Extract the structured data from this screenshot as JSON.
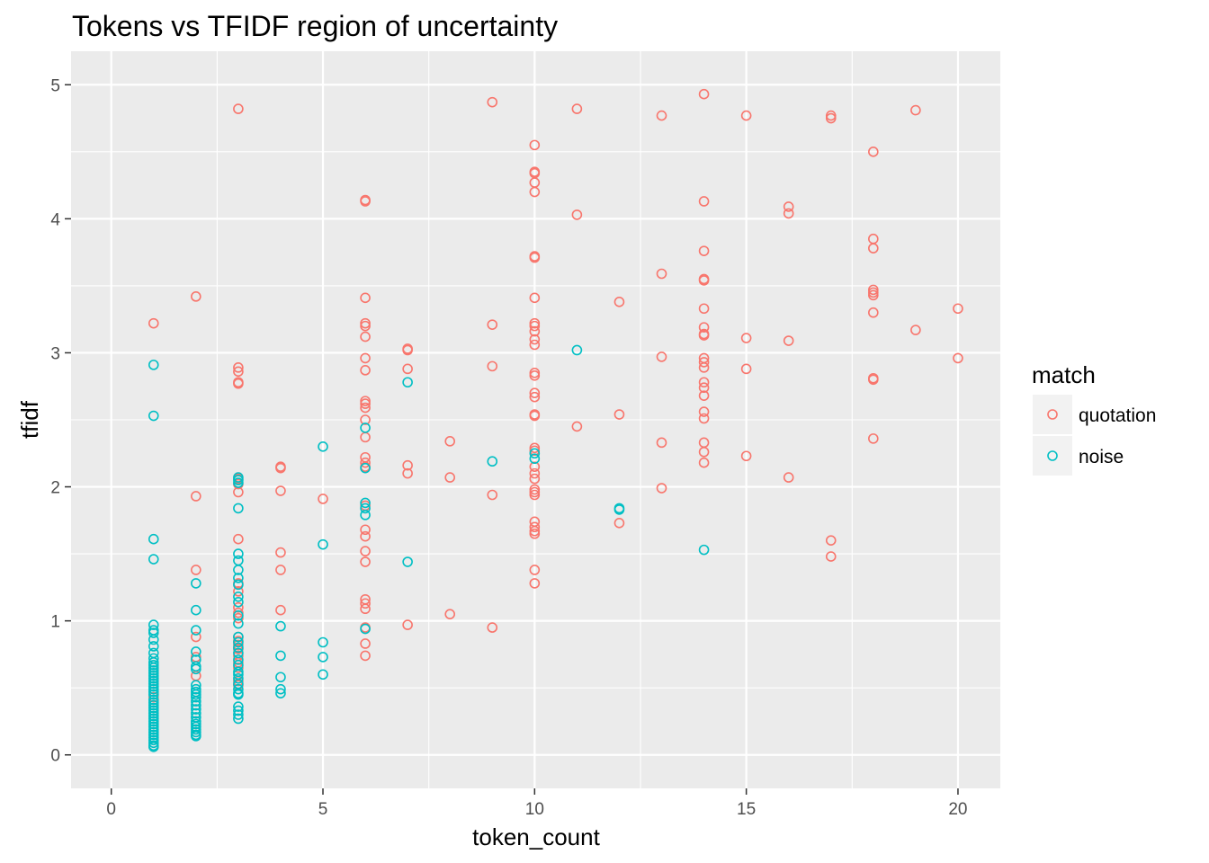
{
  "chart_data": {
    "type": "scatter",
    "title": "Tokens vs TFIDF region of uncertainty",
    "xlabel": "token_count",
    "ylabel": "tfidf",
    "xlim": [
      -0.95,
      21
    ],
    "ylim": [
      -0.25,
      5.25
    ],
    "x_ticks": [
      0,
      5,
      10,
      15,
      20
    ],
    "x_tick_labels": [
      "0",
      "5",
      "10",
      "15",
      "20"
    ],
    "y_ticks": [
      0,
      1,
      2,
      3,
      4,
      5
    ],
    "y_tick_labels": [
      "0",
      "1",
      "2",
      "3",
      "4",
      "5"
    ],
    "grid": true,
    "legend": {
      "title": "match",
      "placement": "right"
    },
    "series": [
      {
        "name": "quotation",
        "color": "#F8766D",
        "points": [
          [
            1,
            3.22
          ],
          [
            1,
            0.43
          ],
          [
            2,
            3.42
          ],
          [
            2,
            1.93
          ],
          [
            2,
            1.38
          ],
          [
            2,
            0.88
          ],
          [
            2,
            0.73
          ],
          [
            2,
            0.59
          ],
          [
            3,
            4.82
          ],
          [
            3,
            2.89
          ],
          [
            3,
            2.86
          ],
          [
            3,
            2.78
          ],
          [
            3,
            2.77
          ],
          [
            3,
            2.06
          ],
          [
            3,
            2.02
          ],
          [
            3,
            1.96
          ],
          [
            3,
            1.61
          ],
          [
            3,
            1.28
          ],
          [
            3,
            1.22
          ],
          [
            3,
            1.1
          ],
          [
            3,
            1.06
          ],
          [
            3,
            1.02
          ],
          [
            3,
            0.88
          ],
          [
            3,
            0.85
          ],
          [
            3,
            0.82
          ],
          [
            3,
            0.79
          ],
          [
            3,
            0.74
          ],
          [
            3,
            0.69
          ],
          [
            3,
            0.65
          ],
          [
            3,
            0.55
          ],
          [
            3,
            0.52
          ],
          [
            4,
            2.15
          ],
          [
            4,
            2.14
          ],
          [
            4,
            1.97
          ],
          [
            4,
            1.51
          ],
          [
            4,
            1.38
          ],
          [
            4,
            1.08
          ],
          [
            5,
            1.91
          ],
          [
            6,
            4.14
          ],
          [
            6,
            4.13
          ],
          [
            6,
            3.41
          ],
          [
            6,
            3.22
          ],
          [
            6,
            3.2
          ],
          [
            6,
            3.12
          ],
          [
            6,
            2.96
          ],
          [
            6,
            2.87
          ],
          [
            6,
            2.64
          ],
          [
            6,
            2.62
          ],
          [
            6,
            2.59
          ],
          [
            6,
            2.5
          ],
          [
            6,
            2.37
          ],
          [
            6,
            2.22
          ],
          [
            6,
            2.18
          ],
          [
            6,
            2.15
          ],
          [
            6,
            1.86
          ],
          [
            6,
            1.68
          ],
          [
            6,
            1.63
          ],
          [
            6,
            1.52
          ],
          [
            6,
            1.44
          ],
          [
            6,
            1.16
          ],
          [
            6,
            1.13
          ],
          [
            6,
            1.09
          ],
          [
            6,
            0.95
          ],
          [
            6,
            0.83
          ],
          [
            6,
            0.74
          ],
          [
            7,
            3.03
          ],
          [
            7,
            3.02
          ],
          [
            7,
            2.88
          ],
          [
            7,
            2.16
          ],
          [
            7,
            2.1
          ],
          [
            7,
            0.97
          ],
          [
            8,
            2.34
          ],
          [
            8,
            2.07
          ],
          [
            8,
            1.05
          ],
          [
            9,
            4.87
          ],
          [
            9,
            3.21
          ],
          [
            9,
            2.9
          ],
          [
            9,
            1.94
          ],
          [
            9,
            0.95
          ],
          [
            10,
            4.55
          ],
          [
            10,
            4.35
          ],
          [
            10,
            4.34
          ],
          [
            10,
            4.27
          ],
          [
            10,
            4.2
          ],
          [
            10,
            3.72
          ],
          [
            10,
            3.71
          ],
          [
            10,
            3.41
          ],
          [
            10,
            3.22
          ],
          [
            10,
            3.2
          ],
          [
            10,
            3.16
          ],
          [
            10,
            3.1
          ],
          [
            10,
            3.06
          ],
          [
            10,
            2.85
          ],
          [
            10,
            2.83
          ],
          [
            10,
            2.7
          ],
          [
            10,
            2.67
          ],
          [
            10,
            2.54
          ],
          [
            10,
            2.53
          ],
          [
            10,
            2.29
          ],
          [
            10,
            2.27
          ],
          [
            10,
            2.15
          ],
          [
            10,
            2.1
          ],
          [
            10,
            2.06
          ],
          [
            10,
            1.98
          ],
          [
            10,
            1.96
          ],
          [
            10,
            1.94
          ],
          [
            10,
            1.74
          ],
          [
            10,
            1.7
          ],
          [
            10,
            1.67
          ],
          [
            10,
            1.65
          ],
          [
            10,
            1.38
          ],
          [
            10,
            1.28
          ],
          [
            11,
            4.82
          ],
          [
            11,
            4.03
          ],
          [
            11,
            2.45
          ],
          [
            12,
            3.38
          ],
          [
            12,
            2.54
          ],
          [
            12,
            1.73
          ],
          [
            13,
            4.77
          ],
          [
            13,
            3.59
          ],
          [
            13,
            2.97
          ],
          [
            13,
            2.33
          ],
          [
            13,
            1.99
          ],
          [
            14,
            4.93
          ],
          [
            14,
            4.13
          ],
          [
            14,
            3.76
          ],
          [
            14,
            3.55
          ],
          [
            14,
            3.54
          ],
          [
            14,
            3.33
          ],
          [
            14,
            3.19
          ],
          [
            14,
            3.14
          ],
          [
            14,
            3.13
          ],
          [
            14,
            2.96
          ],
          [
            14,
            2.93
          ],
          [
            14,
            2.89
          ],
          [
            14,
            2.78
          ],
          [
            14,
            2.74
          ],
          [
            14,
            2.68
          ],
          [
            14,
            2.56
          ],
          [
            14,
            2.51
          ],
          [
            14,
            2.33
          ],
          [
            14,
            2.26
          ],
          [
            14,
            2.18
          ],
          [
            15,
            4.77
          ],
          [
            15,
            3.11
          ],
          [
            15,
            2.88
          ],
          [
            15,
            2.23
          ],
          [
            16,
            4.09
          ],
          [
            16,
            4.04
          ],
          [
            16,
            3.09
          ],
          [
            16,
            2.07
          ],
          [
            17,
            4.77
          ],
          [
            17,
            4.75
          ],
          [
            17,
            1.6
          ],
          [
            17,
            1.48
          ],
          [
            18,
            4.5
          ],
          [
            18,
            3.85
          ],
          [
            18,
            3.78
          ],
          [
            18,
            3.47
          ],
          [
            18,
            3.45
          ],
          [
            18,
            3.43
          ],
          [
            18,
            3.3
          ],
          [
            18,
            2.81
          ],
          [
            18,
            2.8
          ],
          [
            18,
            2.36
          ],
          [
            19,
            4.81
          ],
          [
            19,
            3.17
          ],
          [
            20,
            3.33
          ],
          [
            20,
            2.96
          ]
        ]
      },
      {
        "name": "noise",
        "color": "#00BFC4",
        "points": [
          [
            1,
            2.91
          ],
          [
            1,
            2.53
          ],
          [
            1,
            1.61
          ],
          [
            1,
            1.46
          ],
          [
            1,
            0.97
          ],
          [
            1,
            0.93
          ],
          [
            1,
            0.91
          ],
          [
            1,
            0.86
          ],
          [
            1,
            0.81
          ],
          [
            1,
            0.76
          ],
          [
            1,
            0.72
          ],
          [
            1,
            0.69
          ],
          [
            1,
            0.67
          ],
          [
            1,
            0.65
          ],
          [
            1,
            0.63
          ],
          [
            1,
            0.61
          ],
          [
            1,
            0.59
          ],
          [
            1,
            0.57
          ],
          [
            1,
            0.55
          ],
          [
            1,
            0.53
          ],
          [
            1,
            0.51
          ],
          [
            1,
            0.49
          ],
          [
            1,
            0.47
          ],
          [
            1,
            0.45
          ],
          [
            1,
            0.41
          ],
          [
            1,
            0.39
          ],
          [
            1,
            0.37
          ],
          [
            1,
            0.35
          ],
          [
            1,
            0.33
          ],
          [
            1,
            0.31
          ],
          [
            1,
            0.29
          ],
          [
            1,
            0.27
          ],
          [
            1,
            0.25
          ],
          [
            1,
            0.23
          ],
          [
            1,
            0.21
          ],
          [
            1,
            0.19
          ],
          [
            1,
            0.17
          ],
          [
            1,
            0.15
          ],
          [
            1,
            0.13
          ],
          [
            1,
            0.11
          ],
          [
            1,
            0.09
          ],
          [
            1,
            0.07
          ],
          [
            1,
            0.06
          ],
          [
            2,
            1.28
          ],
          [
            2,
            1.08
          ],
          [
            2,
            0.93
          ],
          [
            2,
            0.77
          ],
          [
            2,
            0.71
          ],
          [
            2,
            0.66
          ],
          [
            2,
            0.64
          ],
          [
            2,
            0.52
          ],
          [
            2,
            0.49
          ],
          [
            2,
            0.47
          ],
          [
            2,
            0.45
          ],
          [
            2,
            0.43
          ],
          [
            2,
            0.4
          ],
          [
            2,
            0.37
          ],
          [
            2,
            0.34
          ],
          [
            2,
            0.31
          ],
          [
            2,
            0.28
          ],
          [
            2,
            0.25
          ],
          [
            2,
            0.23
          ],
          [
            2,
            0.21
          ],
          [
            2,
            0.19
          ],
          [
            2,
            0.17
          ],
          [
            2,
            0.15
          ],
          [
            2,
            0.14
          ],
          [
            3,
            2.07
          ],
          [
            3,
            2.05
          ],
          [
            3,
            2.03
          ],
          [
            3,
            1.84
          ],
          [
            3,
            1.5
          ],
          [
            3,
            1.45
          ],
          [
            3,
            1.38
          ],
          [
            3,
            1.32
          ],
          [
            3,
            1.27
          ],
          [
            3,
            1.18
          ],
          [
            3,
            1.14
          ],
          [
            3,
            1.04
          ],
          [
            3,
            0.98
          ],
          [
            3,
            0.88
          ],
          [
            3,
            0.84
          ],
          [
            3,
            0.8
          ],
          [
            3,
            0.76
          ],
          [
            3,
            0.71
          ],
          [
            3,
            0.67
          ],
          [
            3,
            0.62
          ],
          [
            3,
            0.6
          ],
          [
            3,
            0.57
          ],
          [
            3,
            0.53
          ],
          [
            3,
            0.49
          ],
          [
            3,
            0.46
          ],
          [
            3,
            0.45
          ],
          [
            3,
            0.36
          ],
          [
            3,
            0.33
          ],
          [
            3,
            0.3
          ],
          [
            3,
            0.27
          ],
          [
            4,
            0.96
          ],
          [
            4,
            0.74
          ],
          [
            4,
            0.58
          ],
          [
            4,
            0.49
          ],
          [
            4,
            0.46
          ],
          [
            5,
            2.3
          ],
          [
            5,
            1.57
          ],
          [
            5,
            0.84
          ],
          [
            5,
            0.73
          ],
          [
            5,
            0.6
          ],
          [
            6,
            2.44
          ],
          [
            6,
            2.14
          ],
          [
            6,
            1.88
          ],
          [
            6,
            1.84
          ],
          [
            6,
            1.79
          ],
          [
            6,
            0.94
          ],
          [
            7,
            2.78
          ],
          [
            7,
            1.44
          ],
          [
            9,
            2.19
          ],
          [
            10,
            2.25
          ],
          [
            10,
            2.21
          ],
          [
            11,
            3.02
          ],
          [
            12,
            1.84
          ],
          [
            12,
            1.83
          ],
          [
            14,
            1.53
          ]
        ]
      }
    ]
  }
}
